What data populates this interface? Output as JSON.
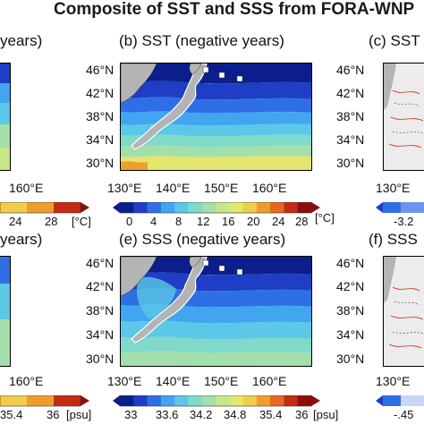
{
  "title": "Composite of SST and SSS from FORA-WNP",
  "colors": {
    "land": "#b4b4b4",
    "sst_scale": [
      "#0b1e8c",
      "#1d3ec5",
      "#2f6fe6",
      "#41a5ef",
      "#5ac8e6",
      "#80d9c9",
      "#a3dfaa",
      "#c8e58a",
      "#e4e66e",
      "#f2cd4a",
      "#ee9e2f",
      "#e36a1e",
      "#c42b14",
      "#8f0d0d"
    ],
    "sss_scale": [
      "#0b1e8c",
      "#1d3ec5",
      "#2f6fe6",
      "#41a5ef",
      "#5ac8e6",
      "#80d9c9",
      "#a3dfaa",
      "#c8e58a",
      "#e4e66e",
      "#f2cd4a",
      "#ee9e2f",
      "#e36a1e",
      "#c42b14",
      "#8f0d0d"
    ],
    "diff_scale": [
      "#1d3ec5",
      "#6f94f0",
      "#c9d6f7",
      "#f5e3e3",
      "#ef9a9a",
      "#c42b14"
    ]
  },
  "panels": [
    {
      "id": "a",
      "title": "years)",
      "variable": "SST",
      "visible": "partial-right"
    },
    {
      "id": "b",
      "title": "(b) SST (negative years)",
      "variable": "SST",
      "visible": "full"
    },
    {
      "id": "c",
      "title": "(c) SST",
      "variable": "SST difference",
      "visible": "partial-left"
    },
    {
      "id": "d",
      "title": "years)",
      "variable": "SSS",
      "visible": "partial-right"
    },
    {
      "id": "e",
      "title": "(e) SSS (negative years)",
      "variable": "SSS",
      "visible": "full"
    },
    {
      "id": "f",
      "title": "(f) SSS",
      "variable": "SSS difference",
      "visible": "partial-left"
    }
  ],
  "map_extent": {
    "lon_min": 130,
    "lon_max": 170,
    "lat_min": 30,
    "lat_max": 48
  },
  "lat_labels": [
    "46°N",
    "42°N",
    "38°N",
    "34°N",
    "30°N"
  ],
  "lat_values": [
    46,
    42,
    38,
    34,
    30
  ],
  "lon_labels_full": [
    "130°E",
    "140°E",
    "150°E",
    "160°E"
  ],
  "lon_values_full": [
    130,
    140,
    150,
    160
  ],
  "lon_label_left": "160°E",
  "lon_label_right": "130°E",
  "sst_colorbar": {
    "ticks": [
      "0",
      "4",
      "8",
      "12",
      "16",
      "20",
      "24",
      "28"
    ],
    "unit": "[°C]",
    "partial_ticks": [
      "24",
      "28"
    ],
    "min": -2,
    "max": 30
  },
  "sss_colorbar": {
    "ticks": [
      "33",
      "33.6",
      "34.2",
      "34.8",
      "35.4",
      "36"
    ],
    "unit": "[psu]",
    "partial_ticks": [
      "35.4",
      "36"
    ],
    "min": 32.7,
    "max": 36.3
  },
  "diff_colorbars": {
    "sst_tick": "-3.2",
    "sss_tick": "-.45"
  }
}
